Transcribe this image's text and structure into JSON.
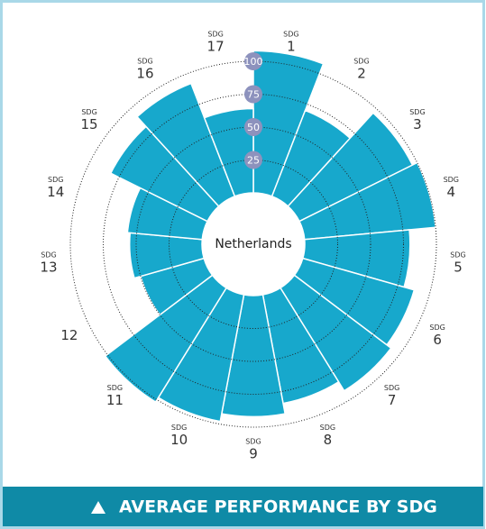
{
  "chart_data": {
    "type": "polar-bar",
    "center_label": "Netherlands",
    "banner": "AVERAGE PERFORMANCE BY SDG",
    "categories": [
      {
        "prefix": "SDG",
        "number": "1"
      },
      {
        "prefix": "SDG",
        "number": "2"
      },
      {
        "prefix": "SDG",
        "number": "3"
      },
      {
        "prefix": "SDG",
        "number": "4"
      },
      {
        "prefix": "SDG",
        "number": "5"
      },
      {
        "prefix": "SDG",
        "number": "6"
      },
      {
        "prefix": "SDG",
        "number": "7"
      },
      {
        "prefix": "SDG",
        "number": "8"
      },
      {
        "prefix": "SDG",
        "number": "9"
      },
      {
        "prefix": "SDG",
        "number": "10"
      },
      {
        "prefix": "SDG",
        "number": "11"
      },
      {
        "number": "12"
      },
      {
        "prefix": "SDG",
        "number": "13"
      },
      {
        "prefix": "SDG",
        "number": "14"
      },
      {
        "prefix": "SDG",
        "number": "15"
      },
      {
        "prefix": "SDG",
        "number": "16"
      },
      {
        "prefix": "SDG",
        "number": "17"
      }
    ],
    "values": [
      108,
      70,
      96,
      100,
      80,
      88,
      92,
      84,
      92,
      98,
      102,
      50,
      55,
      57,
      82,
      92,
      64
    ],
    "color": "#17a8cc",
    "rlim": [
      0,
      100
    ],
    "rticks": [
      25,
      50,
      75,
      100
    ]
  }
}
